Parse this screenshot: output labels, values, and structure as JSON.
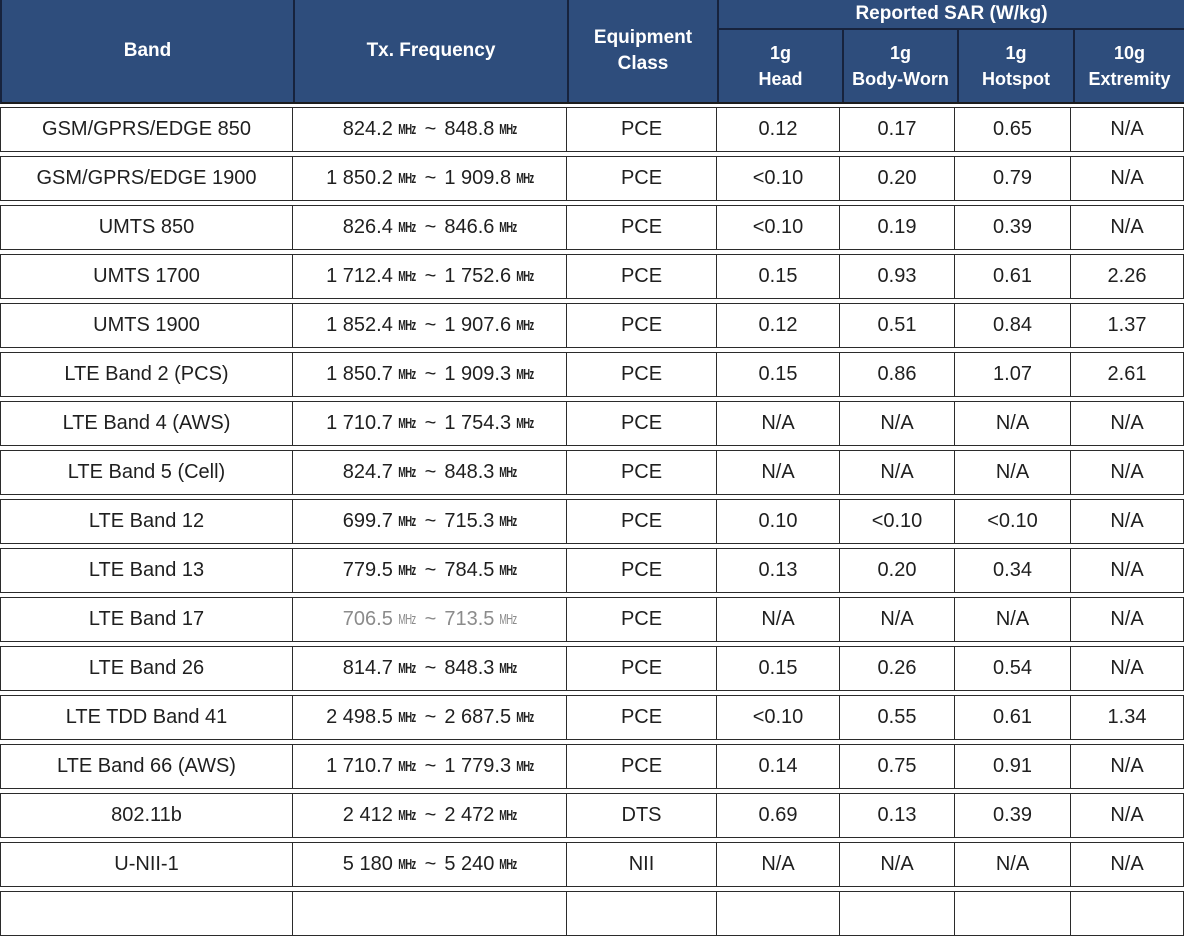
{
  "table": {
    "colors": {
      "header_bg": "#2e4d7c",
      "header_text": "#ffffff",
      "header_divider": "#17233d",
      "border": "#2b2b2b"
    },
    "unit": "MHz",
    "tilde": "~",
    "header": {
      "band": "Band",
      "tx_frequency": "Tx. Frequency",
      "equipment_class": {
        "line1": "Equipment",
        "line2": "Class"
      },
      "reported_sar": "Reported SAR (W/kg)",
      "sar_columns": [
        {
          "line1": "1g",
          "line2": "Head"
        },
        {
          "line1": "1g",
          "line2": "Body-Worn"
        },
        {
          "line1": "1g",
          "line2": "Hotspot"
        },
        {
          "line1": "10g",
          "line2": "Extremity"
        }
      ]
    },
    "rows": [
      {
        "band": "GSM/GPRS/EDGE 850",
        "freq_start": "824.2",
        "freq_end": "848.8",
        "equipment_class": "PCE",
        "sar_head": "0.12",
        "sar_body_worn": "0.17",
        "sar_hotspot": "0.65",
        "sar_extremity": "N/A"
      },
      {
        "band": "GSM/GPRS/EDGE 1900",
        "freq_start": "1 850.2",
        "freq_end": "1 909.8",
        "equipment_class": "PCE",
        "sar_head": "<0.10",
        "sar_body_worn": "0.20",
        "sar_hotspot": "0.79",
        "sar_extremity": "N/A"
      },
      {
        "band": "UMTS 850",
        "freq_start": "826.4",
        "freq_end": "846.6",
        "equipment_class": "PCE",
        "sar_head": "<0.10",
        "sar_body_worn": "0.19",
        "sar_hotspot": "0.39",
        "sar_extremity": "N/A"
      },
      {
        "band": "UMTS 1700",
        "freq_start": "1 712.4",
        "freq_end": "1 752.6",
        "equipment_class": "PCE",
        "sar_head": "0.15",
        "sar_body_worn": "0.93",
        "sar_hotspot": "0.61",
        "sar_extremity": "2.26"
      },
      {
        "band": "UMTS 1900",
        "freq_start": "1 852.4",
        "freq_end": "1 907.6",
        "equipment_class": "PCE",
        "sar_head": "0.12",
        "sar_body_worn": "0.51",
        "sar_hotspot": "0.84",
        "sar_extremity": "1.37"
      },
      {
        "band": "LTE Band 2 (PCS)",
        "freq_start": "1 850.7",
        "freq_end": "1 909.3",
        "equipment_class": "PCE",
        "sar_head": "0.15",
        "sar_body_worn": "0.86",
        "sar_hotspot": "1.07",
        "sar_extremity": "2.61"
      },
      {
        "band": "LTE Band 4 (AWS)",
        "freq_start": "1 710.7",
        "freq_end": "1 754.3",
        "equipment_class": "PCE",
        "sar_head": "N/A",
        "sar_body_worn": "N/A",
        "sar_hotspot": "N/A",
        "sar_extremity": "N/A"
      },
      {
        "band": "LTE Band 5 (Cell)",
        "freq_start": "824.7",
        "freq_end": "848.3",
        "equipment_class": "PCE",
        "sar_head": "N/A",
        "sar_body_worn": "N/A",
        "sar_hotspot": "N/A",
        "sar_extremity": "N/A"
      },
      {
        "band": "LTE Band 12",
        "freq_start": "699.7",
        "freq_end": "715.3",
        "equipment_class": "PCE",
        "sar_head": "0.10",
        "sar_body_worn": "<0.10",
        "sar_hotspot": "<0.10",
        "sar_extremity": "N/A"
      },
      {
        "band": "LTE Band 13",
        "freq_start": "779.5",
        "freq_end": "784.5",
        "equipment_class": "PCE",
        "sar_head": "0.13",
        "sar_body_worn": "0.20",
        "sar_hotspot": "0.34",
        "sar_extremity": "N/A"
      },
      {
        "band": "LTE Band 17",
        "freq_start": "706.5",
        "freq_end": "713.5",
        "equipment_class": "PCE",
        "sar_head": "N/A",
        "sar_body_worn": "N/A",
        "sar_hotspot": "N/A",
        "sar_extremity": "N/A",
        "freq_light": true
      },
      {
        "band": "LTE Band 26",
        "freq_start": "814.7",
        "freq_end": "848.3",
        "equipment_class": "PCE",
        "sar_head": "0.15",
        "sar_body_worn": "0.26",
        "sar_hotspot": "0.54",
        "sar_extremity": "N/A"
      },
      {
        "band": "LTE TDD Band 41",
        "freq_start": "2 498.5",
        "freq_end": "2 687.5",
        "equipment_class": "PCE",
        "sar_head": "<0.10",
        "sar_body_worn": "0.55",
        "sar_hotspot": "0.61",
        "sar_extremity": "1.34"
      },
      {
        "band": "LTE Band 66 (AWS)",
        "freq_start": "1 710.7",
        "freq_end": "1 779.3",
        "equipment_class": "PCE",
        "sar_head": "0.14",
        "sar_body_worn": "0.75",
        "sar_hotspot": "0.91",
        "sar_extremity": "N/A"
      },
      {
        "band": "802.11b",
        "freq_start": "2 412",
        "freq_end": "2 472",
        "equipment_class": "DTS",
        "sar_head": "0.69",
        "sar_body_worn": "0.13",
        "sar_hotspot": "0.39",
        "sar_extremity": "N/A"
      },
      {
        "band": "U-NII-1",
        "freq_start": "5 180",
        "freq_end": "5 240",
        "equipment_class": "NII",
        "sar_head": "N/A",
        "sar_body_worn": "N/A",
        "sar_hotspot": "N/A",
        "sar_extremity": "N/A"
      }
    ]
  }
}
